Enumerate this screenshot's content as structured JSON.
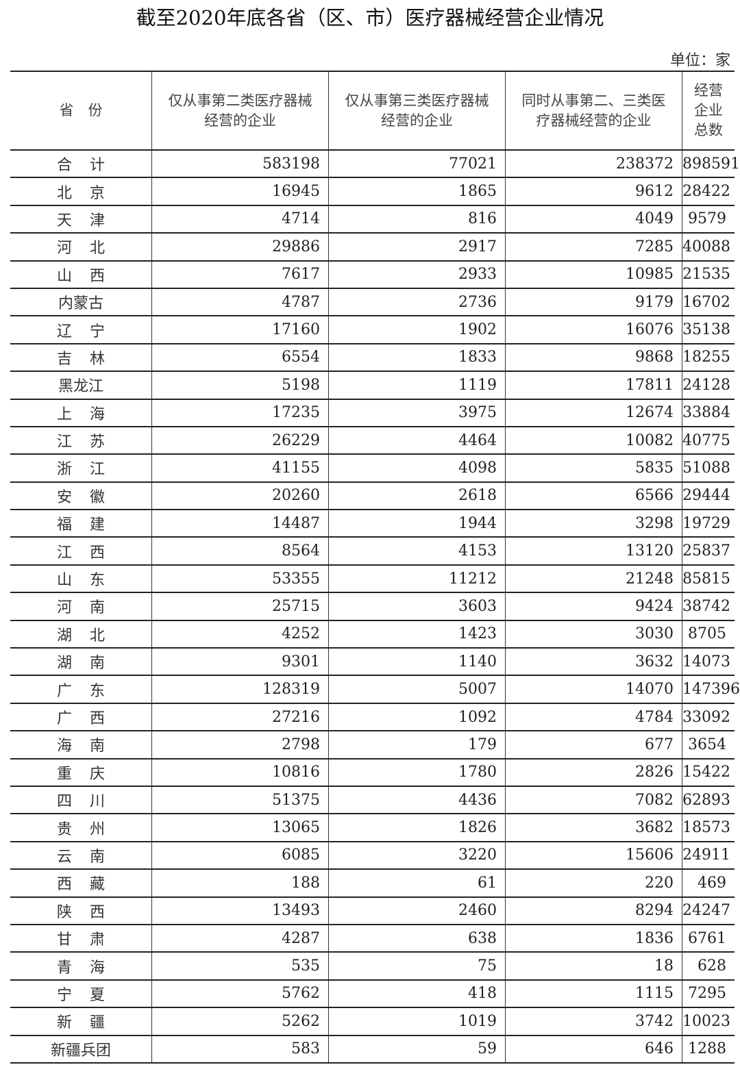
{
  "title": "截至2020年底各省（区、市）医疗器械经营企业情况",
  "unit": "单位：家",
  "columns": [
    "省　份",
    "仅从事第二类医疗器械经营的企业",
    "仅从事第三类医疗器械经营的企业",
    "同时从事第二、三类医疗器械经营的企业",
    "经营企业总数"
  ],
  "rows": [
    [
      "合计",
      "583198",
      "77021",
      "238372",
      "898591"
    ],
    [
      "北京",
      "16945",
      "1865",
      "9612",
      "28422"
    ],
    [
      "天津",
      "4714",
      "816",
      "4049",
      "9579"
    ],
    [
      "河北",
      "29886",
      "2917",
      "7285",
      "40088"
    ],
    [
      "山西",
      "7617",
      "2933",
      "10985",
      "21535"
    ],
    [
      "内蒙古",
      "4787",
      "2736",
      "9179",
      "16702"
    ],
    [
      "辽宁",
      "17160",
      "1902",
      "16076",
      "35138"
    ],
    [
      "吉林",
      "6554",
      "1833",
      "9868",
      "18255"
    ],
    [
      "黑龙江",
      "5198",
      "1119",
      "17811",
      "24128"
    ],
    [
      "上海",
      "17235",
      "3975",
      "12674",
      "33884"
    ],
    [
      "江苏",
      "26229",
      "4464",
      "10082",
      "40775"
    ],
    [
      "浙江",
      "41155",
      "4098",
      "5835",
      "51088"
    ],
    [
      "安徽",
      "20260",
      "2618",
      "6566",
      "29444"
    ],
    [
      "福建",
      "14487",
      "1944",
      "3298",
      "19729"
    ],
    [
      "江西",
      "8564",
      "4153",
      "13120",
      "25837"
    ],
    [
      "山东",
      "53355",
      "11212",
      "21248",
      "85815"
    ],
    [
      "河南",
      "25715",
      "3603",
      "9424",
      "38742"
    ],
    [
      "湖北",
      "4252",
      "1423",
      "3030",
      "8705"
    ],
    [
      "湖南",
      "9301",
      "1140",
      "3632",
      "14073"
    ],
    [
      "广东",
      "128319",
      "5007",
      "14070",
      "147396"
    ],
    [
      "广西",
      "27216",
      "1092",
      "4784",
      "33092"
    ],
    [
      "海南",
      "2798",
      "179",
      "677",
      "3654"
    ],
    [
      "重庆",
      "10816",
      "1780",
      "2826",
      "15422"
    ],
    [
      "四川",
      "51375",
      "4436",
      "7082",
      "62893"
    ],
    [
      "贵州",
      "13065",
      "1826",
      "3682",
      "18573"
    ],
    [
      "云南",
      "6085",
      "3220",
      "15606",
      "24911"
    ],
    [
      "西藏",
      "188",
      "61",
      "220",
      "469"
    ],
    [
      "陕西",
      "13493",
      "2460",
      "8294",
      "24247"
    ],
    [
      "甘肃",
      "4287",
      "638",
      "1836",
      "6761"
    ],
    [
      "青海",
      "535",
      "75",
      "18",
      "628"
    ],
    [
      "宁夏",
      "5762",
      "418",
      "1115",
      "7295"
    ],
    [
      "新疆",
      "5262",
      "1019",
      "3742",
      "10023"
    ],
    [
      "新疆兵团",
      "583",
      "59",
      "646",
      "1288"
    ]
  ]
}
